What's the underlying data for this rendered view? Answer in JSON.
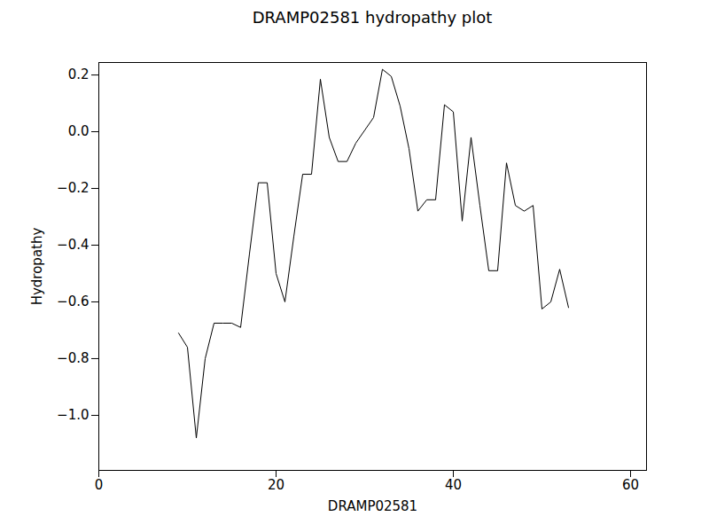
{
  "chart_data": {
    "type": "line",
    "title": "DRAMP02581 hydropathy plot",
    "x_label": "DRAMP02581",
    "y_label": "Hydropathy",
    "color": "#000000",
    "x": [
      9,
      10,
      11,
      12,
      13,
      14,
      15,
      16,
      17,
      18,
      19,
      20,
      21,
      22,
      23,
      24,
      25,
      26,
      27,
      28,
      29,
      30,
      31,
      32,
      33,
      34,
      35,
      36,
      37,
      38,
      39,
      40,
      41,
      42,
      43,
      44,
      45,
      46,
      47,
      48,
      49,
      50,
      51,
      52,
      53
    ],
    "values": [
      -0.71,
      -0.76,
      -1.08,
      -0.8,
      -0.675,
      -0.675,
      -0.675,
      -0.69,
      -0.43,
      -0.18,
      -0.18,
      -0.5,
      -0.6,
      -0.37,
      -0.15,
      -0.15,
      0.185,
      -0.02,
      -0.105,
      -0.105,
      -0.04,
      0.005,
      0.05,
      0.22,
      0.195,
      0.09,
      -0.06,
      -0.28,
      -0.24,
      -0.24,
      0.095,
      0.07,
      -0.315,
      -0.02,
      -0.26,
      -0.49,
      -0.49,
      -0.11,
      -0.26,
      -0.28,
      -0.26,
      -0.625,
      -0.6,
      -0.485,
      -0.62
    ],
    "xlim": [
      0,
      61.8
    ],
    "xticks": [
      0,
      20,
      40,
      60
    ],
    "ylim": [
      -1.194,
      0.244
    ],
    "yticks": [
      {
        "value": -1.0,
        "label": "−1.0"
      },
      {
        "value": -0.8,
        "label": "−0.8"
      },
      {
        "value": -0.6,
        "label": "−0.6"
      },
      {
        "value": -0.4,
        "label": "−0.4"
      },
      {
        "value": -0.2,
        "label": "−0.2"
      },
      {
        "value": 0.0,
        "label": "0.0"
      },
      {
        "value": 0.2,
        "label": "0.2"
      }
    ],
    "grid": false
  }
}
